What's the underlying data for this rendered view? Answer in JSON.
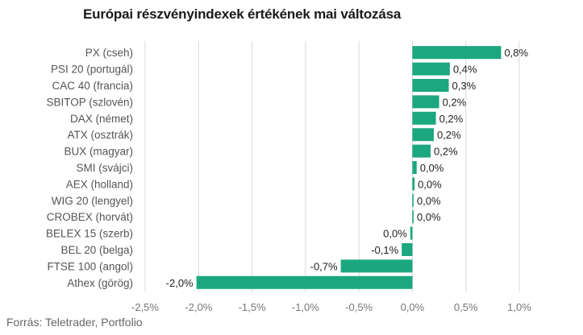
{
  "chart_data": {
    "type": "bar",
    "orientation": "horizontal",
    "title": "Európai részvényindexek értékének mai változása",
    "source": "Forrás: Teletrader, Portfolio",
    "categories": [
      "PX (cseh)",
      "PSI 20 (portugál)",
      "CAC 40 (francia)",
      "SBITOP (szlovén)",
      "DAX (német)",
      "ATX (osztrák)",
      "BUX (magyar)",
      "SMI (svájci)",
      "AEX (holland)",
      "WIG 20 (lengyel)",
      "CROBEX (horvát)",
      "BELEX 15 (szerb)",
      "BEL 20 (belga)",
      "FTSE 100 (angol)",
      "Athex (görög)"
    ],
    "values": [
      0.83,
      0.35,
      0.34,
      0.25,
      0.22,
      0.2,
      0.17,
      0.04,
      0.02,
      0.01,
      0.01,
      -0.02,
      -0.1,
      -0.67,
      -2.02
    ],
    "value_labels": [
      "0,8%",
      "0,4%",
      "0,3%",
      "0,2%",
      "0,2%",
      "0,2%",
      "0,2%",
      "0,0%",
      "0,0%",
      "0,0%",
      "0,0%",
      "0,0%",
      "-0,1%",
      "-0,7%",
      "-2,0%"
    ],
    "xlim": [
      -2.5,
      1.0
    ],
    "xticks": [
      -2.5,
      -2.0,
      -1.5,
      -1.0,
      -0.5,
      0.0,
      0.5,
      1.0
    ],
    "xtick_labels": [
      "-2,5%",
      "-2,0%",
      "-1,5%",
      "-1,0%",
      "-0,5%",
      "0,0%",
      "0,5%",
      "1,0%"
    ],
    "grid": true,
    "bar_color": "#1ba77f"
  }
}
